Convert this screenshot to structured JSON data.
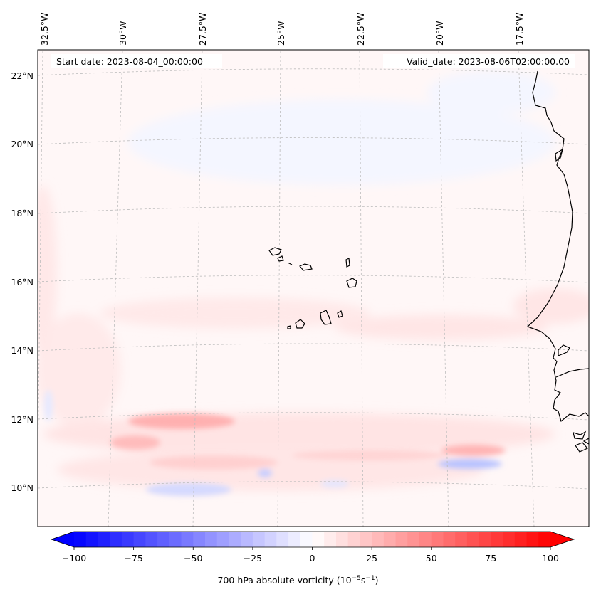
{
  "map": {
    "start_date": "Start date: 2023-08-04_00:00:00",
    "valid_date": "Valid_date: 2023-08-06T02:00:00.00",
    "lon_labels": [
      "32.5°W",
      "30°W",
      "27.5°W",
      "25°W",
      "22.5°W",
      "20°W",
      "17.5°W"
    ],
    "lat_labels": [
      "22°N",
      "20°N",
      "18°N",
      "16°N",
      "14°N",
      "12°N",
      "10°N"
    ],
    "extent": {
      "lon_min": -32.5,
      "lon_max": -15.0,
      "lat_min": 8.9,
      "lat_max": 22.8
    },
    "features": [
      {
        "name": "positive vorticity band",
        "lat": 11.9,
        "lon_from": -29.5,
        "lon_to": -26.5,
        "value": 45
      },
      {
        "name": "positive vorticity band",
        "lat": 11.0,
        "lon_from": -19.5,
        "lon_to": -17.5,
        "value": 40
      },
      {
        "name": "negative vorticity patch",
        "lat": 10.6,
        "lon_from": -20.0,
        "lon_to": -18.5,
        "value": -25
      },
      {
        "name": "negative vorticity patch",
        "lat": 9.8,
        "lon_from": -29.5,
        "lon_to": -27.5,
        "value": -20
      }
    ]
  },
  "colorbar": {
    "label_prefix": "700 hPa absolute vorticity (10",
    "exp1": "−5",
    "label_mid": "s",
    "exp2": "−1",
    "label_suffix": ")",
    "min": -100,
    "max": 100,
    "levels": 41,
    "ticks": [
      "−100",
      "−75",
      "−50",
      "−25",
      "0",
      "25",
      "50",
      "75",
      "100"
    ],
    "tick_values": [
      -100,
      -75,
      -50,
      -25,
      0,
      25,
      50,
      75,
      100
    ],
    "color_negative": "#0000ff",
    "color_zero": "#ffffff",
    "color_positive": "#ff0000"
  }
}
